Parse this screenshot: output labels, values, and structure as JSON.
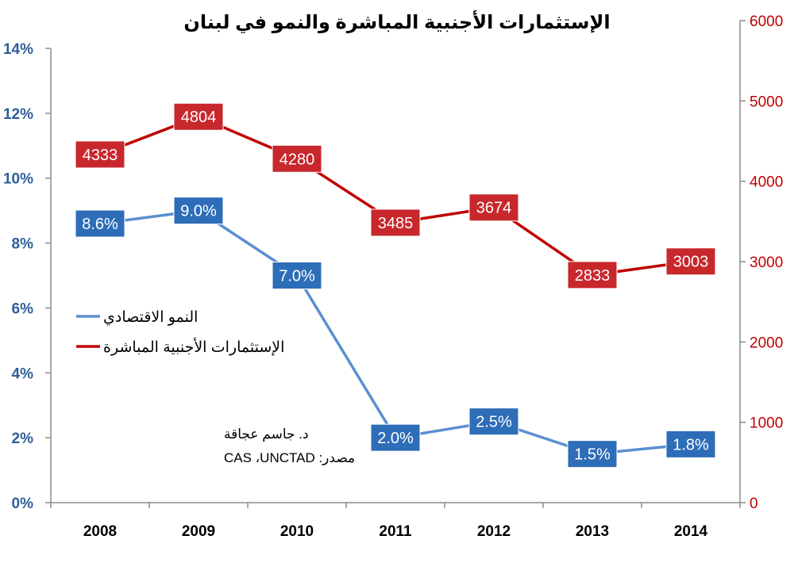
{
  "chart_data": {
    "type": "line",
    "title": "الإستثمارات الأجنبية المباشرة والنمو في لبنان",
    "categories": [
      "2008",
      "2009",
      "2010",
      "2011",
      "2012",
      "2013",
      "2014"
    ],
    "y_left": {
      "min": 0,
      "max": 14,
      "step": 2,
      "tick_labels": [
        "0%",
        "2%",
        "4%",
        "6%",
        "8%",
        "10%",
        "12%",
        "14%"
      ],
      "color": "#2E5E9A"
    },
    "y_right": {
      "min": 0,
      "max": 6000,
      "step": 1000,
      "tick_labels": [
        "0",
        "1000",
        "2000",
        "3000",
        "4000",
        "5000",
        "6000"
      ],
      "color": "#C00000"
    },
    "series": [
      {
        "name": "النمو الاقتصادي",
        "axis": "left",
        "values": [
          8.6,
          9.0,
          7.0,
          2.0,
          2.5,
          1.5,
          1.8
        ],
        "labels": [
          "8.6%",
          "9.0%",
          "7.0%",
          "2.0%",
          "2.5%",
          "1.5%",
          "1.8%"
        ],
        "color": "#5B8FD0",
        "label_bg": "#2E6DB8"
      },
      {
        "name": "الإستثمارات الأجنبية المباشرة",
        "axis": "right",
        "values": [
          4333,
          4804,
          4280,
          3485,
          3674,
          2833,
          3003
        ],
        "labels": [
          "4333",
          "4804",
          "4280",
          "3485",
          "3674",
          "2833",
          "3003"
        ],
        "color": "#C00000",
        "label_bg": "#C8272C"
      }
    ],
    "grid": false,
    "legend_position": "left-middle",
    "source": {
      "author": "د. جاسم عجاقة",
      "text": "مصدر: CAS ،UNCTAD"
    }
  }
}
